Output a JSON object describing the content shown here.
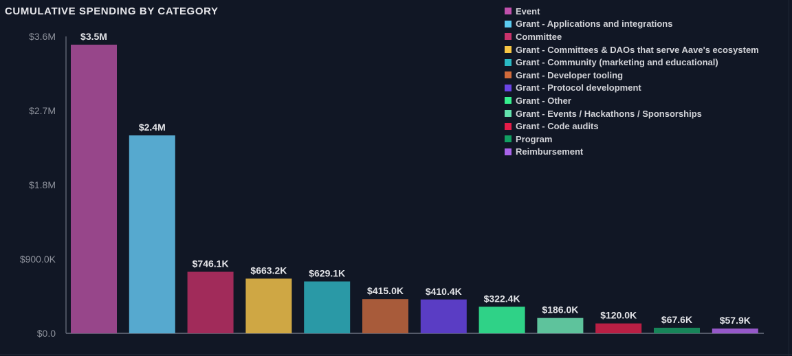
{
  "chart_data": {
    "type": "bar",
    "title": "CUMULATIVE SPENDING BY CATEGORY",
    "xlabel": "",
    "ylabel": "",
    "ylim": [
      0,
      3600000
    ],
    "yticks": [
      0,
      900000,
      1800000,
      2700000,
      3600000
    ],
    "ytick_labels": [
      "$0.0",
      "$900.0K",
      "$1.8M",
      "$2.7M",
      "$3.6M"
    ],
    "grid": false,
    "legend_position": "top-right",
    "categories": [
      "Event",
      "Grant - Applications and integrations",
      "Committee",
      "Grant - Committees & DAOs that serve Aave's ecosystem",
      "Grant - Community (marketing and educational)",
      "Grant - Developer tooling",
      "Grant - Protocol development",
      "Grant - Other",
      "Grant - Events / Hackathons / Sponsorships",
      "Grant - Code audits",
      "Program",
      "Reimbursement"
    ],
    "values": [
      3500000,
      2400000,
      746100,
      663200,
      629100,
      415000,
      410400,
      322400,
      186000,
      120000,
      67600,
      57900
    ],
    "data_labels": [
      "$3.5M",
      "$2.4M",
      "$746.1K",
      "$663.2K",
      "$629.1K",
      "$415.0K",
      "$410.4K",
      "$322.4K",
      "$186.0K",
      "$120.0K",
      "$67.6K",
      "$57.9K"
    ],
    "colors": [
      "#97468a",
      "#56a9cf",
      "#a12b5a",
      "#cfa744",
      "#2a99a6",
      "#a85b3a",
      "#5a3dc4",
      "#2fd287",
      "#5ec39c",
      "#b91f44",
      "#178559",
      "#9558c9"
    ],
    "legend_colors": [
      "#c150ac",
      "#5ccbf0",
      "#c9336b",
      "#f6c644",
      "#2ab9c4",
      "#d06a3a",
      "#6b45e4",
      "#36f08e",
      "#63e2ad",
      "#e41c48",
      "#12a062",
      "#a964ea"
    ]
  }
}
